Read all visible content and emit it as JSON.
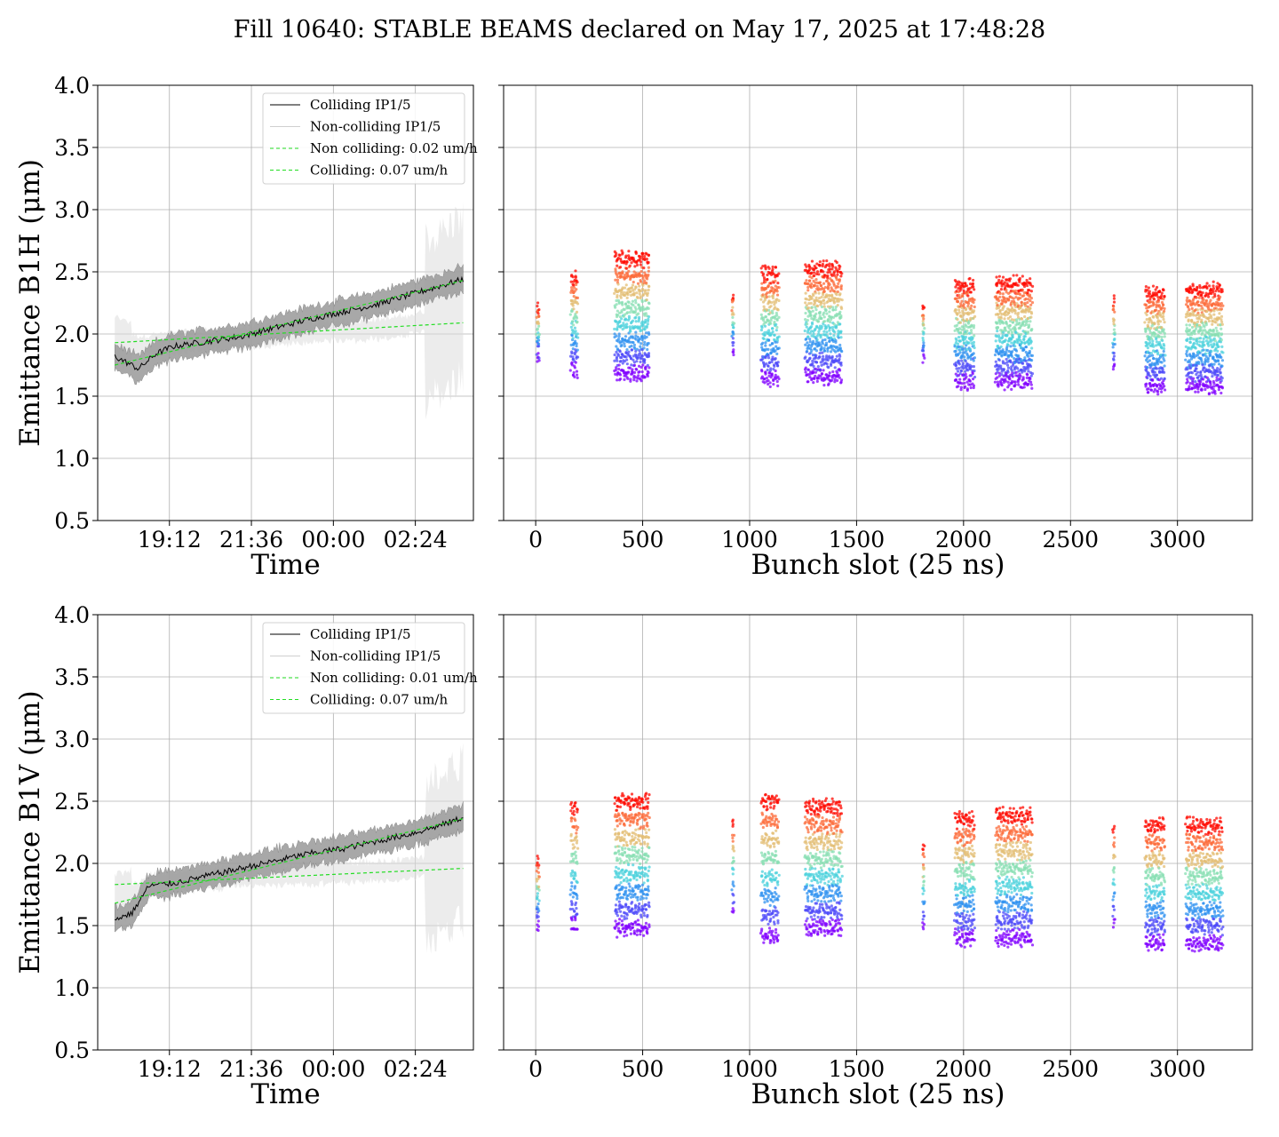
{
  "figure": {
    "title": "Fill 10640: STABLE BEAMS declared on May 17, 2025 at 17:48:28"
  },
  "chart_data": [
    {
      "type": "line",
      "panel": "top-left",
      "xlabel": "Time",
      "ylabel": "Emittance B1H (μm)",
      "x_ticks": [
        "19:12",
        "21:36",
        "00:00",
        "02:24"
      ],
      "x_tick_hours": [
        1.4,
        3.8,
        6.2,
        8.6
      ],
      "xlim_hours_after_17_48": [
        -0.7,
        10.3
      ],
      "ylim": [
        0.5,
        4.0
      ],
      "y_ticks": [
        "0.5",
        "1.0",
        "1.5",
        "2.0",
        "2.5",
        "3.0",
        "3.5",
        "4.0"
      ],
      "grid": true,
      "legend_position": "top-right",
      "legend": [
        "Colliding IP1/5",
        "Non-colliding IP1/5",
        "Non colliding: 0.02 um/h",
        "Colliding: 0.07 um/h"
      ],
      "series": [
        {
          "name": "Colliding IP1/5",
          "x": [
            -0.2,
            0.5,
            1.0,
            1.5,
            2.5,
            3.5,
            4.5,
            5.5,
            6.5,
            7.5,
            8.5,
            9.5,
            10.0
          ],
          "y": [
            1.82,
            1.72,
            1.84,
            1.9,
            1.94,
            1.98,
            2.05,
            2.12,
            2.18,
            2.24,
            2.32,
            2.4,
            2.44
          ],
          "band_halfwidth": 0.1
        },
        {
          "name": "Non-colliding IP1/5",
          "x": [
            -0.2,
            0.5,
            1.0,
            2.0,
            3.0,
            4.0,
            5.0,
            6.0,
            7.0,
            8.0,
            8.9,
            9.5,
            10.0
          ],
          "y": [
            1.95,
            1.9,
            1.92,
            1.94,
            1.96,
            1.98,
            2.0,
            2.02,
            2.03,
            2.05,
            2.1,
            2.2,
            2.3
          ],
          "band_halfwidth": 0.08
        },
        {
          "name": "Non colliding: 0.02 um/h",
          "x": [
            -0.2,
            10.0
          ],
          "y": [
            1.93,
            2.09
          ]
        },
        {
          "name": "Colliding: 0.07 um/h",
          "x": [
            -0.2,
            10.0
          ],
          "y": [
            1.75,
            2.43
          ]
        }
      ],
      "colors": {
        "colliding": "#000000",
        "band_colliding": "#9a9a9a",
        "band_noncolliding": "#dddddd",
        "fit": "#22dd22"
      }
    },
    {
      "type": "scatter",
      "panel": "top-right",
      "xlabel": "Bunch slot (25 ns)",
      "x_ticks": [
        "0",
        "500",
        "1000",
        "1500",
        "2000",
        "2500",
        "3000"
      ],
      "xlim": [
        -150,
        3350
      ],
      "ylim": [
        0.5,
        4.0
      ],
      "grid": true,
      "trains": [
        {
          "start": 5,
          "end": 15,
          "ymin": 1.8,
          "ymax": 2.2
        },
        {
          "start": 165,
          "end": 195,
          "ymin": 1.72,
          "ymax": 2.45
        },
        {
          "start": 370,
          "end": 530,
          "ymin": 1.68,
          "ymax": 2.6
        },
        {
          "start": 920,
          "end": 925,
          "ymin": 1.85,
          "ymax": 2.28
        },
        {
          "start": 1055,
          "end": 1135,
          "ymin": 1.65,
          "ymax": 2.48
        },
        {
          "start": 1260,
          "end": 1430,
          "ymin": 1.66,
          "ymax": 2.52
        },
        {
          "start": 1810,
          "end": 1815,
          "ymin": 1.78,
          "ymax": 2.18
        },
        {
          "start": 1960,
          "end": 2050,
          "ymin": 1.62,
          "ymax": 2.38
        },
        {
          "start": 2150,
          "end": 2320,
          "ymin": 1.62,
          "ymax": 2.4
        },
        {
          "start": 2700,
          "end": 2705,
          "ymin": 1.72,
          "ymax": 2.25
        },
        {
          "start": 2850,
          "end": 2940,
          "ymin": 1.58,
          "ymax": 2.33
        },
        {
          "start": 3040,
          "end": 3210,
          "ymin": 1.58,
          "ymax": 2.35
        }
      ]
    },
    {
      "type": "line",
      "panel": "bottom-left",
      "xlabel": "Time",
      "ylabel": "Emittance B1V (μm)",
      "x_ticks": [
        "19:12",
        "21:36",
        "00:00",
        "02:24"
      ],
      "x_tick_hours": [
        1.4,
        3.8,
        6.2,
        8.6
      ],
      "xlim_hours_after_17_48": [
        -0.7,
        10.3
      ],
      "ylim": [
        0.5,
        4.0
      ],
      "y_ticks": [
        "0.5",
        "1.0",
        "1.5",
        "2.0",
        "2.5",
        "3.0",
        "3.5",
        "4.0"
      ],
      "grid": true,
      "legend_position": "top-right",
      "legend": [
        "Colliding IP1/5",
        "Non-colliding IP1/5",
        "Non colliding: 0.01 um/h",
        "Colliding: 0.07 um/h"
      ],
      "series": [
        {
          "name": "Colliding IP1/5",
          "x": [
            -0.2,
            0.3,
            0.8,
            1.5,
            2.5,
            3.5,
            4.5,
            5.5,
            6.5,
            7.5,
            8.5,
            9.5,
            10.0
          ],
          "y": [
            1.55,
            1.6,
            1.82,
            1.84,
            1.9,
            1.96,
            2.02,
            2.08,
            2.12,
            2.18,
            2.24,
            2.32,
            2.37
          ],
          "band_halfwidth": 0.1
        },
        {
          "name": "Non-colliding IP1/5",
          "x": [
            -0.2,
            0.5,
            1.0,
            2.0,
            3.0,
            4.0,
            5.0,
            6.0,
            7.0,
            8.0,
            8.9,
            9.5,
            10.0
          ],
          "y": [
            1.72,
            1.78,
            1.84,
            1.86,
            1.88,
            1.9,
            1.91,
            1.92,
            1.93,
            1.94,
            1.98,
            2.1,
            2.2
          ],
          "band_halfwidth": 0.08
        },
        {
          "name": "Non colliding: 0.01 um/h",
          "x": [
            -0.2,
            10.0
          ],
          "y": [
            1.83,
            1.96
          ]
        },
        {
          "name": "Colliding: 0.07 um/h",
          "x": [
            -0.2,
            10.0
          ],
          "y": [
            1.68,
            2.36
          ]
        }
      ],
      "colors": {
        "colliding": "#000000",
        "band_colliding": "#9a9a9a",
        "band_noncolliding": "#dddddd",
        "fit": "#22dd22"
      }
    },
    {
      "type": "scatter",
      "panel": "bottom-right",
      "xlabel": "Bunch slot (25 ns)",
      "x_ticks": [
        "0",
        "500",
        "1000",
        "1500",
        "2000",
        "2500",
        "3000"
      ],
      "xlim": [
        -150,
        3350
      ],
      "ylim": [
        0.5,
        4.0
      ],
      "grid": true,
      "trains": [
        {
          "start": 5,
          "end": 15,
          "ymin": 1.5,
          "ymax": 2.0
        },
        {
          "start": 165,
          "end": 195,
          "ymin": 1.5,
          "ymax": 2.45
        },
        {
          "start": 370,
          "end": 530,
          "ymin": 1.48,
          "ymax": 2.5
        },
        {
          "start": 920,
          "end": 925,
          "ymin": 1.6,
          "ymax": 2.3
        },
        {
          "start": 1055,
          "end": 1135,
          "ymin": 1.42,
          "ymax": 2.5
        },
        {
          "start": 1260,
          "end": 1430,
          "ymin": 1.48,
          "ymax": 2.45
        },
        {
          "start": 1810,
          "end": 1815,
          "ymin": 1.48,
          "ymax": 2.1
        },
        {
          "start": 1960,
          "end": 2050,
          "ymin": 1.4,
          "ymax": 2.35
        },
        {
          "start": 2150,
          "end": 2320,
          "ymin": 1.4,
          "ymax": 2.38
        },
        {
          "start": 2700,
          "end": 2705,
          "ymin": 1.5,
          "ymax": 2.25
        },
        {
          "start": 2850,
          "end": 2940,
          "ymin": 1.36,
          "ymax": 2.3
        },
        {
          "start": 3040,
          "end": 3210,
          "ymin": 1.36,
          "ymax": 2.3
        }
      ]
    }
  ]
}
